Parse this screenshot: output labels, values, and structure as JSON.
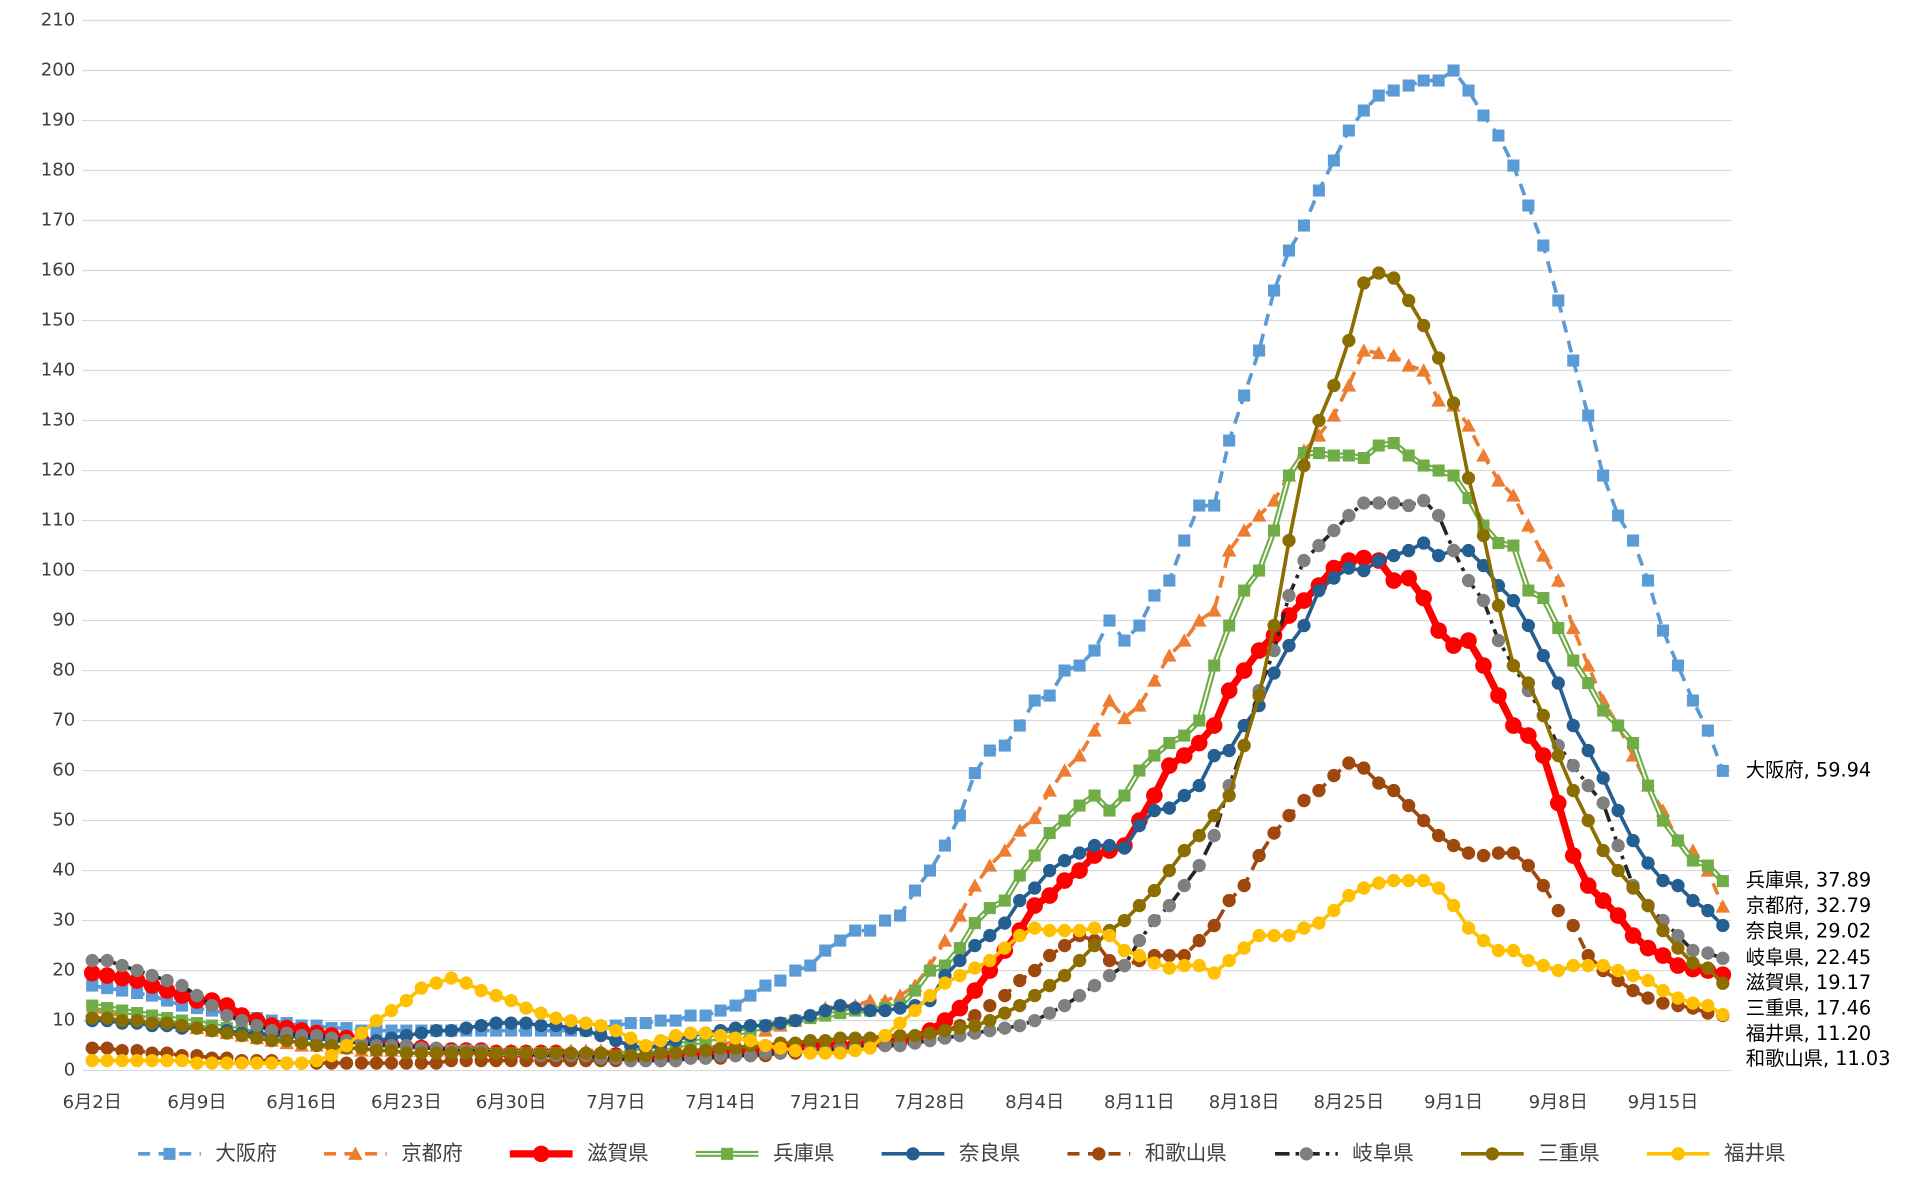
{
  "chart_data": {
    "type": "line",
    "categories": [
      "6月2日",
      null,
      null,
      null,
      null,
      null,
      null,
      "6月9日",
      null,
      null,
      null,
      null,
      null,
      null,
      "6月16日",
      null,
      null,
      null,
      null,
      null,
      null,
      "6月23日",
      null,
      null,
      null,
      null,
      null,
      null,
      "6月30日",
      null,
      null,
      null,
      null,
      null,
      null,
      "7月7日",
      null,
      null,
      null,
      null,
      null,
      null,
      "7月14日",
      null,
      null,
      null,
      null,
      null,
      null,
      "7月21日",
      null,
      null,
      null,
      null,
      null,
      null,
      "7月28日",
      null,
      null,
      null,
      null,
      null,
      null,
      "8月4日",
      null,
      null,
      null,
      null,
      null,
      null,
      "8月11日",
      null,
      null,
      null,
      null,
      null,
      null,
      "8月18日",
      null,
      null,
      null,
      null,
      null,
      null,
      "8月25日",
      null,
      null,
      null,
      null,
      null,
      null,
      "9月1日",
      null,
      null,
      null,
      null,
      null,
      null,
      "9月8日",
      null,
      null,
      null,
      null,
      null,
      null,
      "9月15日",
      null,
      null,
      null,
      null
    ],
    "ylim": [
      0,
      210
    ],
    "yticks": [
      0,
      10,
      20,
      30,
      40,
      50,
      60,
      70,
      80,
      90,
      100,
      110,
      120,
      130,
      140,
      150,
      160,
      170,
      180,
      190,
      200,
      210
    ],
    "grid": true,
    "legend": "bottom",
    "series": [
      {
        "name": "大阪府",
        "color": "#5b9bd5",
        "line": "dashed",
        "marker": "square",
        "end_label": "大阪府, 59.94",
        "values": [
          17,
          16.5,
          16,
          15.5,
          15,
          14,
          13,
          12.5,
          12,
          11.5,
          11,
          10.5,
          10,
          9.5,
          9,
          9,
          8.5,
          8.5,
          8,
          8,
          8,
          8,
          8,
          8,
          8,
          8,
          8,
          8,
          8,
          8,
          8,
          8,
          8,
          8,
          8.5,
          9,
          9.5,
          9.5,
          10,
          10,
          11,
          11,
          12,
          13,
          15,
          17,
          18,
          20,
          21,
          24,
          26,
          28,
          28,
          30,
          31,
          36,
          40,
          45,
          51,
          59.5,
          64,
          65,
          69,
          74,
          75,
          80,
          81,
          84,
          90,
          86,
          89,
          95,
          98,
          106,
          113,
          113,
          126,
          135,
          144,
          156,
          164,
          169,
          176,
          182,
          188,
          192,
          195,
          196,
          197,
          198,
          198,
          200,
          196,
          191,
          187,
          181,
          173,
          165,
          154,
          142,
          131,
          119,
          111,
          106,
          98,
          88,
          81,
          74,
          68,
          59.94
        ]
      },
      {
        "name": "京都府",
        "color": "#ed7d31",
        "line": "dashed",
        "marker": "triangle",
        "end_label": "京都府, 32.79",
        "values": [
          12,
          11.5,
          11,
          10.5,
          10,
          9.5,
          9,
          8.5,
          8,
          7.5,
          7,
          6.5,
          6,
          5.5,
          5,
          5,
          4.5,
          4.5,
          4,
          4,
          4,
          4,
          4,
          4,
          4,
          4,
          4,
          4,
          4,
          4,
          4,
          4,
          4,
          4,
          4,
          3.5,
          3.5,
          3.5,
          3.5,
          4,
          4,
          4.5,
          5,
          6,
          7,
          8,
          9,
          10,
          11,
          12.5,
          13,
          13,
          14,
          14,
          15,
          17,
          21,
          26,
          31,
          37,
          41,
          44,
          48,
          50.5,
          56,
          60,
          63,
          68,
          74,
          70.5,
          73,
          78,
          83,
          86,
          90,
          92,
          104,
          108,
          111,
          114,
          119,
          124,
          127,
          131,
          137,
          144,
          143.5,
          143,
          141,
          140,
          134,
          133,
          129,
          123,
          118,
          115,
          109,
          103,
          98,
          88.5,
          81,
          74,
          69,
          63,
          57,
          52,
          46,
          44,
          40,
          32.79
        ]
      },
      {
        "name": "滋賀県",
        "color": "#ff0000",
        "line": "bold",
        "marker": "circle",
        "end_label": "滋賀県, 19.17",
        "values": [
          19.5,
          19,
          18.5,
          18,
          17,
          16,
          15,
          14,
          14,
          13,
          11,
          10,
          9,
          8.5,
          8,
          7.5,
          7,
          6.5,
          6,
          5.5,
          5,
          4.5,
          4.5,
          4,
          4,
          4,
          4,
          3.5,
          3.5,
          3.5,
          3.5,
          3.5,
          3,
          3,
          3,
          3,
          3,
          3,
          3,
          3,
          3.5,
          3.5,
          4,
          4,
          4,
          4.5,
          4.5,
          5,
          5,
          5,
          5,
          5,
          5.5,
          5.5,
          6,
          6.5,
          8,
          10,
          12.5,
          16,
          20,
          24,
          28,
          33,
          35,
          38,
          40,
          43,
          44,
          45,
          50,
          55,
          61,
          63,
          65.5,
          69,
          76,
          80,
          84,
          87,
          91,
          94,
          97,
          100.5,
          102,
          102.5,
          102,
          98,
          98.5,
          94.5,
          88,
          85,
          86,
          81,
          75,
          69,
          67,
          63,
          53.5,
          43,
          37,
          34,
          31,
          27,
          24.5,
          23,
          21,
          20.3,
          20,
          19.17
        ]
      },
      {
        "name": "兵庫県",
        "color": "#70ad47",
        "line": "double",
        "marker": "square",
        "end_label": "兵庫県, 37.89",
        "values": [
          13,
          12.5,
          12,
          11.5,
          11,
          10.5,
          10,
          9.5,
          9,
          8.5,
          8,
          7.5,
          7,
          6.5,
          6,
          6,
          5.5,
          5,
          5,
          4.5,
          4.5,
          4,
          4,
          4,
          4,
          4,
          4,
          3.5,
          3.5,
          3.5,
          3.5,
          3.5,
          3,
          3,
          2.5,
          3,
          3.5,
          4,
          4.5,
          5,
          5.5,
          6,
          7,
          7.5,
          8,
          9,
          9.5,
          10,
          10.5,
          11,
          11.5,
          12,
          12,
          12.5,
          13,
          16,
          20,
          21,
          24.5,
          29.5,
          32.5,
          34,
          39,
          43,
          47.5,
          50,
          53,
          55,
          52,
          55,
          60,
          63,
          65.5,
          67,
          70,
          81,
          89,
          96,
          100,
          108,
          119,
          123.5,
          123.5,
          123,
          123,
          122.5,
          125,
          125.5,
          123,
          121,
          120,
          119,
          114.5,
          109,
          105.5,
          105,
          96,
          94.5,
          88.5,
          82,
          77.5,
          72,
          69,
          65.5,
          57,
          50,
          46,
          42,
          41,
          37.89
        ]
      },
      {
        "name": "奈良県",
        "color": "#255e91",
        "line": "solid",
        "marker": "circle",
        "end_label": "奈良県, 29.02",
        "values": [
          10,
          10,
          9.5,
          9.5,
          9,
          9,
          8.5,
          8.5,
          8,
          8,
          7.5,
          7.5,
          7,
          7,
          6.5,
          6.5,
          6,
          6,
          6,
          6,
          6.5,
          7,
          7.5,
          8,
          8,
          8.5,
          9,
          9.5,
          9.5,
          9.5,
          9,
          9,
          8.5,
          8,
          7,
          6,
          5,
          4.5,
          5,
          6,
          7,
          7.5,
          8,
          8.5,
          9,
          9,
          9.5,
          10,
          11,
          12,
          13,
          12.5,
          12,
          12,
          12.5,
          13,
          14,
          19,
          22,
          25,
          27,
          29.5,
          34,
          36.5,
          40,
          42,
          43.5,
          45,
          45,
          44.5,
          49,
          52,
          52.5,
          55,
          57,
          63,
          64,
          69,
          73,
          79.5,
          85,
          89,
          96,
          98.5,
          100.5,
          100,
          102,
          103,
          104,
          105.5,
          103,
          104,
          104,
          101,
          97,
          94,
          89,
          83,
          77.5,
          69,
          64,
          58.5,
          52,
          46,
          41.5,
          38,
          37,
          34,
          32,
          29.02
        ]
      },
      {
        "name": "和歌山県",
        "color": "#9e480e",
        "line": "dashed",
        "marker": "circle",
        "end_label": "和歌山県, 11.03",
        "values": [
          4.5,
          4.5,
          4,
          4,
          3.5,
          3.5,
          3,
          3,
          2.5,
          2.5,
          2,
          2,
          2,
          1.5,
          1.5,
          1.5,
          1.5,
          1.5,
          1.5,
          1.5,
          1.5,
          1.5,
          1.5,
          1.5,
          2,
          2,
          2,
          2,
          2,
          2,
          2,
          2,
          2,
          2,
          2,
          2,
          2,
          2,
          2,
          2,
          2.5,
          2.5,
          2.5,
          3,
          3,
          3,
          3.5,
          3.5,
          4,
          4,
          4.5,
          5,
          5.5,
          5.5,
          6,
          6.5,
          7,
          8,
          9,
          11,
          13,
          15,
          18,
          20,
          23,
          25,
          27,
          26,
          22,
          21,
          22,
          23,
          23,
          23,
          26,
          29,
          34,
          37,
          43,
          47.5,
          51,
          54,
          56,
          59,
          61.5,
          60.5,
          57.5,
          56,
          53,
          50,
          47,
          45,
          43.5,
          43,
          43.5,
          43.5,
          41,
          37,
          32,
          29,
          23,
          20,
          18,
          16,
          14.5,
          13.5,
          13,
          12.5,
          11.5,
          11.03
        ]
      },
      {
        "name": "岐阜県",
        "color": "#262626",
        "marker_color": "#7f7f7f",
        "line": "dashdot",
        "marker": "circle",
        "end_label": "岐阜県, 22.45",
        "values": [
          22,
          22,
          21,
          20,
          19,
          18,
          17,
          15,
          13,
          11,
          10,
          9,
          8,
          7.5,
          7,
          7,
          6.5,
          6,
          5.5,
          5,
          5,
          5,
          4.5,
          4.5,
          4,
          4,
          4,
          3.5,
          3.5,
          3.5,
          3,
          3,
          3,
          3,
          2.5,
          2.5,
          2,
          2,
          2,
          2,
          2.5,
          2.5,
          3,
          3,
          3,
          3.5,
          3.5,
          4,
          4,
          4,
          4.5,
          4.5,
          5,
          5,
          5,
          5.5,
          6,
          6.5,
          7,
          7.5,
          8,
          8.5,
          9,
          10,
          11.5,
          13,
          15,
          17,
          19,
          21,
          26,
          30,
          33,
          37,
          41,
          47,
          57,
          65,
          76,
          84,
          95,
          102,
          105,
          108,
          111,
          113.5,
          113.5,
          113.5,
          113,
          114,
          111,
          104,
          98,
          94,
          86,
          81,
          76,
          71,
          65,
          61,
          57,
          53.5,
          45,
          37,
          33,
          30,
          27,
          24,
          23.5,
          22.45
        ]
      },
      {
        "name": "三重県",
        "color": "#8c6d00",
        "line": "solid",
        "marker": "circle",
        "end_label": "三重県, 17.46",
        "values": [
          10.5,
          10.5,
          10,
          10,
          9.5,
          9.5,
          9,
          8.5,
          8,
          7.5,
          7,
          6.5,
          6,
          6,
          5.5,
          5,
          5,
          4.5,
          4.5,
          4,
          4,
          3.5,
          3.5,
          3.5,
          3.5,
          3.5,
          3.5,
          3.5,
          3.5,
          3.5,
          3.5,
          3.5,
          3.5,
          3.5,
          3.5,
          3,
          3,
          3,
          3.5,
          3.5,
          4,
          4,
          4.5,
          4.5,
          5,
          5,
          5.5,
          5.5,
          6,
          6,
          6.5,
          6.5,
          6.5,
          7,
          7,
          7,
          7.5,
          8,
          8.5,
          9,
          10,
          11.5,
          13,
          15,
          17,
          19,
          22,
          25,
          28,
          30,
          33,
          36,
          40,
          44,
          47,
          51,
          55,
          65,
          75,
          89,
          106,
          121,
          130,
          137,
          146,
          157.5,
          159.5,
          158.5,
          154,
          149,
          142.5,
          133.5,
          118.5,
          107,
          93,
          81,
          77.5,
          71,
          63,
          56,
          50,
          44,
          40,
          36.5,
          33,
          28,
          24.5,
          21.5,
          20.5,
          17.46
        ]
      },
      {
        "name": "福井県",
        "color": "#ffc000",
        "line": "solid",
        "marker": "circle",
        "end_label": "福井県, 11.20",
        "values": [
          2,
          2,
          2,
          2,
          2,
          2,
          2,
          1.5,
          1.5,
          1.5,
          1.5,
          1.5,
          1.5,
          1.5,
          1.5,
          2,
          3,
          5,
          7.5,
          10,
          12,
          14,
          16.5,
          17.5,
          18.5,
          17.5,
          16,
          15,
          14,
          12.5,
          11.5,
          10.5,
          10,
          9.5,
          9,
          8,
          6.5,
          5,
          6,
          7,
          7.5,
          7.5,
          7,
          6.5,
          6,
          5,
          4.5,
          4,
          3.5,
          3.5,
          3.5,
          4,
          4.5,
          7,
          9.5,
          12,
          15,
          17.5,
          19,
          20.5,
          22,
          24.5,
          27,
          28.5,
          28,
          28,
          28,
          28.5,
          27,
          24,
          23,
          21.5,
          20.5,
          21,
          21,
          19.5,
          22,
          24.5,
          27,
          27,
          27,
          28.5,
          29.5,
          32,
          35,
          36.5,
          37.5,
          38,
          38,
          38,
          36.5,
          33,
          28.5,
          26,
          24,
          24,
          22,
          21,
          20,
          21,
          21,
          21,
          20,
          19,
          18,
          16,
          14.5,
          13.5,
          13,
          11.2
        ]
      }
    ]
  }
}
